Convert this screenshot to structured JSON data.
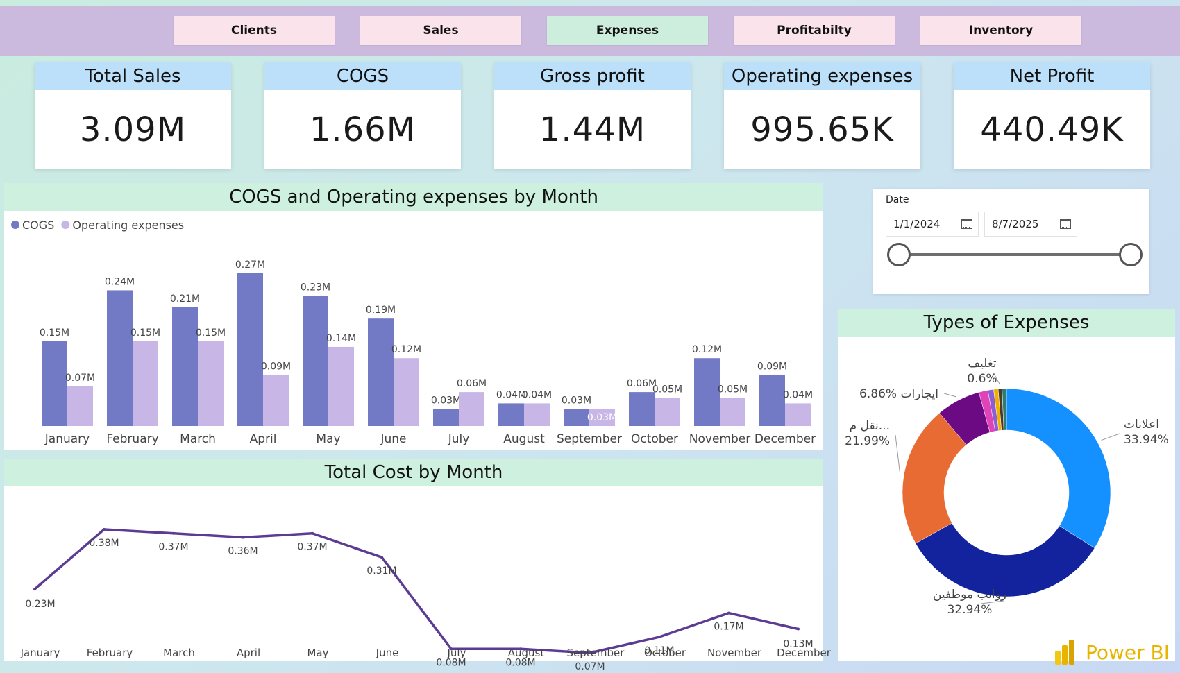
{
  "nav": {
    "tabs": [
      {
        "label": "Clients",
        "active": false
      },
      {
        "label": "Sales",
        "active": false
      },
      {
        "label": "Expenses",
        "active": true
      },
      {
        "label": "Profitabilty",
        "active": false
      },
      {
        "label": "Inventory",
        "active": false
      }
    ]
  },
  "kpis": [
    {
      "title": "Total Sales",
      "value": "3.09M"
    },
    {
      "title": "COGS",
      "value": "1.66M"
    },
    {
      "title": "Gross profit",
      "value": "1.44M"
    },
    {
      "title": "Operating expenses",
      "value": "995.65K"
    },
    {
      "title": "Net Profit",
      "value": "440.49K"
    }
  ],
  "slicer": {
    "label": "Date",
    "start": "1/1/2024",
    "end": "8/7/2025",
    "range_fraction": [
      0,
      1
    ]
  },
  "logo": {
    "text": "Power BI"
  },
  "colors": {
    "cogs": "#7279c5",
    "opex": "#c8b6e7",
    "line": "#5b3b93",
    "donut": [
      "#1590ff",
      "#13239e",
      "#e86b33",
      "#6b0a82",
      "#e042b8",
      "#8a5fd4",
      "#f2b100",
      "#4a3a2a",
      "#2e7d6f"
    ]
  },
  "chart_data": [
    {
      "type": "bar",
      "title": "COGS and Operating expenses by Month",
      "categories": [
        "January",
        "February",
        "March",
        "April",
        "May",
        "June",
        "July",
        "August",
        "September",
        "October",
        "November",
        "December"
      ],
      "series": [
        {
          "name": "COGS",
          "values": [
            0.15,
            0.24,
            0.21,
            0.27,
            0.23,
            0.19,
            0.03,
            0.04,
            0.03,
            0.06,
            0.12,
            0.09
          ],
          "labels": [
            "0.15M",
            "0.24M",
            "0.21M",
            "0.27M",
            "0.23M",
            "0.19M",
            "0.03M",
            "0.04M",
            "0.03M",
            "0.06M",
            "0.12M",
            "0.09M"
          ]
        },
        {
          "name": "Operating expenses",
          "values": [
            0.07,
            0.15,
            0.15,
            0.09,
            0.14,
            0.12,
            0.06,
            0.04,
            0.03,
            0.05,
            0.05,
            0.04
          ],
          "labels": [
            "0.07M",
            "0.15M",
            "0.15M",
            "0.09M",
            "0.14M",
            "0.12M",
            "0.06M",
            "0.04M",
            "0.03M",
            "0.05M",
            "0.05M",
            "0.04M"
          ]
        }
      ],
      "legend": "top-left",
      "ylim": [
        0,
        0.27
      ],
      "grid": false
    },
    {
      "type": "line",
      "title": "Total Cost by Month",
      "categories": [
        "January",
        "February",
        "March",
        "April",
        "May",
        "June",
        "July",
        "August",
        "September",
        "October",
        "November",
        "December"
      ],
      "values": [
        0.23,
        0.38,
        0.37,
        0.36,
        0.37,
        0.31,
        0.08,
        0.08,
        0.07,
        0.11,
        0.17,
        0.13
      ],
      "labels": [
        "0.23M",
        "0.38M",
        "0.37M",
        "0.36M",
        "0.37M",
        "0.31M",
        "0.08M",
        "0.08M",
        "0.07M",
        "0.11M",
        "0.17M",
        "0.13M"
      ],
      "ylim": [
        0.07,
        0.38
      ],
      "grid": false
    },
    {
      "type": "pie",
      "title": "Types of Expenses",
      "donut": true,
      "slices": [
        {
          "label": "اعلانات",
          "value": 33.94,
          "display": "33.94%"
        },
        {
          "label": "رواتب موظفين",
          "value": 32.94,
          "display": "32.94%"
        },
        {
          "label": "نقل م...",
          "value": 21.99,
          "display": "21.99%"
        },
        {
          "label": "ايجارات",
          "value": 6.86,
          "display": "6.86%"
        },
        {
          "label": "",
          "value": 1.4
        },
        {
          "label": "",
          "value": 0.9
        },
        {
          "label": "",
          "value": 0.7
        },
        {
          "label": "تغليف",
          "value": 0.6,
          "display": "0.6%"
        },
        {
          "label": "",
          "value": 0.67
        }
      ]
    }
  ]
}
